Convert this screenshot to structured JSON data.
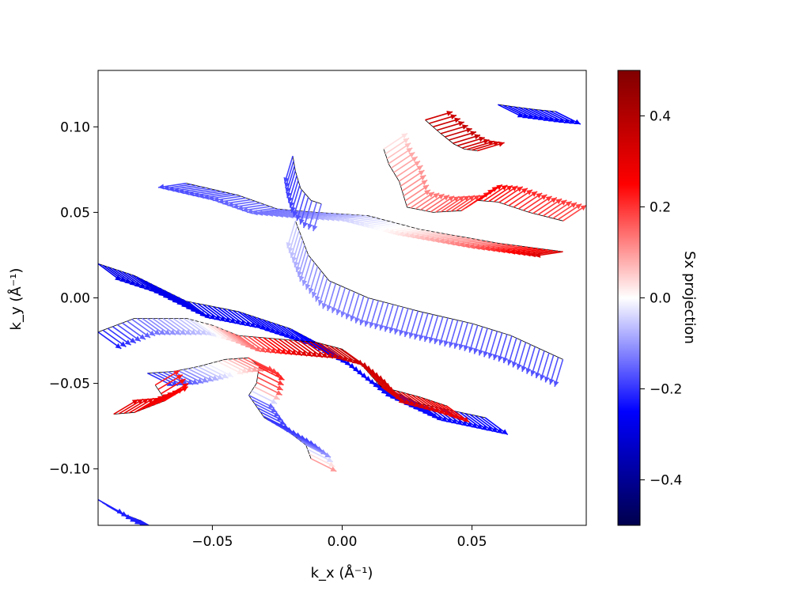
{
  "chart_data": {
    "type": "quiver",
    "xlabel": "k_x (Å⁻¹)",
    "ylabel": "k_y (Å⁻¹)",
    "xlim": [
      -0.094,
      0.094
    ],
    "ylim": [
      -0.133,
      0.133
    ],
    "x_ticks": [
      -0.05,
      0.0,
      0.05
    ],
    "x_tick_labels": [
      "−0.05",
      "0.00",
      "0.05"
    ],
    "y_ticks": [
      -0.1,
      -0.05,
      0.0,
      0.05,
      0.1
    ],
    "y_tick_labels": [
      "−0.10",
      "−0.05",
      "0.00",
      "0.05",
      "0.10"
    ],
    "colorbar": {
      "label": "Sx projection",
      "range": [
        -0.5,
        0.5
      ],
      "ticks": [
        -0.4,
        -0.2,
        0.0,
        0.2,
        0.4
      ],
      "tick_labels": [
        "−0.4",
        "−0.2",
        "0.0",
        "0.2",
        "0.4"
      ],
      "colormap": "seismic",
      "colors": [
        "#00004d",
        "#0000ff",
        "#ffffff",
        "#ff0000",
        "#800000"
      ]
    },
    "series": [
      {
        "points": [
          [
            -0.06,
            0.067
          ],
          [
            -0.04,
            0.06
          ],
          [
            -0.025,
            0.052
          ],
          [
            -0.01,
            0.05
          ],
          [
            0.01,
            0.048
          ],
          [
            0.03,
            0.04
          ],
          [
            0.06,
            0.032
          ],
          [
            0.085,
            0.027
          ]
        ],
        "sx": [
          -0.18,
          -0.16,
          -0.14,
          -0.12,
          -0.05,
          0.02,
          0.15,
          0.32
        ],
        "dir": [
          -1.0,
          -0.15
        ]
      },
      {
        "points": [
          [
            -0.019,
            0.083
          ],
          [
            -0.018,
            0.074
          ],
          [
            -0.016,
            0.064
          ],
          [
            -0.012,
            0.057
          ],
          [
            -0.008,
            0.055
          ]
        ],
        "sx": [
          -0.18,
          -0.19,
          -0.18,
          -0.16,
          -0.14
        ],
        "dir": [
          -0.3,
          -1.0
        ]
      },
      {
        "points": [
          [
            -0.018,
            0.045
          ],
          [
            -0.013,
            0.025
          ],
          [
            -0.005,
            0.01
          ],
          [
            0.01,
            0.0
          ],
          [
            0.03,
            -0.008
          ],
          [
            0.05,
            -0.015
          ],
          [
            0.065,
            -0.022
          ],
          [
            0.085,
            -0.036
          ]
        ],
        "sx": [
          -0.05,
          -0.1,
          -0.12,
          -0.14,
          -0.15,
          -0.16,
          -0.17,
          -0.17
        ],
        "dir": [
          -0.3,
          -1.0
        ]
      },
      {
        "points": [
          [
            0.016,
            0.087
          ],
          [
            0.018,
            0.078
          ],
          [
            0.022,
            0.068
          ],
          [
            0.025,
            0.053
          ],
          [
            0.035,
            0.05
          ],
          [
            0.046,
            0.051
          ],
          [
            0.052,
            0.057
          ],
          [
            0.06,
            0.056
          ],
          [
            0.072,
            0.05
          ],
          [
            0.085,
            0.045
          ]
        ],
        "sx": [
          0.03,
          0.08,
          0.1,
          0.12,
          0.16,
          0.2,
          0.25,
          0.22,
          0.2,
          0.18
        ],
        "dir": [
          0.6,
          0.4
        ]
      },
      {
        "points": [
          [
            0.032,
            0.104
          ],
          [
            0.038,
            0.096
          ],
          [
            0.043,
            0.09
          ],
          [
            0.047,
            0.087
          ],
          [
            0.052,
            0.086
          ]
        ],
        "sx": [
          0.34,
          0.36,
          0.36,
          0.34,
          0.32
        ],
        "dir": [
          1.0,
          0.3
        ]
      },
      {
        "points": [
          [
            0.06,
            0.113
          ],
          [
            0.065,
            0.112
          ],
          [
            0.07,
            0.111
          ],
          [
            0.075,
            0.11
          ],
          [
            0.082,
            0.109
          ]
        ],
        "sx": [
          -0.25,
          -0.25,
          -0.25,
          -0.25,
          -0.25
        ],
        "dir": [
          1.0,
          -0.5
        ]
      },
      {
        "points": [
          [
            -0.094,
            0.02
          ],
          [
            -0.08,
            0.013
          ],
          [
            -0.06,
            -0.002
          ],
          [
            -0.04,
            -0.008
          ],
          [
            -0.02,
            -0.018
          ],
          [
            -0.005,
            -0.03
          ],
          [
            0.01,
            -0.048
          ],
          [
            0.03,
            -0.062
          ],
          [
            0.055,
            -0.07
          ]
        ],
        "sx": [
          -0.28,
          -0.28,
          -0.27,
          -0.26,
          -0.25,
          -0.25,
          -0.24,
          -0.24,
          -0.24
        ],
        "dir": [
          0.8,
          -0.6
        ]
      },
      {
        "points": [
          [
            -0.094,
            -0.02
          ],
          [
            -0.08,
            -0.012
          ],
          [
            -0.06,
            -0.012
          ],
          [
            -0.05,
            -0.016
          ],
          [
            -0.04,
            -0.022
          ],
          [
            -0.025,
            -0.024
          ],
          [
            -0.01,
            -0.026
          ],
          [
            0.0,
            -0.03
          ],
          [
            0.008,
            -0.04
          ],
          [
            0.015,
            -0.052
          ],
          [
            0.03,
            -0.058
          ],
          [
            0.04,
            -0.063
          ]
        ],
        "sx": [
          -0.22,
          -0.14,
          -0.05,
          0.05,
          0.15,
          0.3,
          0.34,
          0.35,
          0.34,
          0.32,
          0.3,
          0.28
        ],
        "dir": [
          0.7,
          -0.5
        ]
      },
      {
        "points": [
          [
            -0.075,
            -0.044
          ],
          [
            -0.065,
            -0.043
          ],
          [
            -0.055,
            -0.04
          ],
          [
            -0.045,
            -0.036
          ],
          [
            -0.036,
            -0.035
          ],
          [
            -0.032,
            -0.04
          ],
          [
            -0.033,
            -0.05
          ],
          [
            -0.036,
            -0.057
          ],
          [
            -0.03,
            -0.07
          ],
          [
            -0.02,
            -0.079
          ],
          [
            -0.014,
            -0.086
          ],
          [
            -0.012,
            -0.094
          ]
        ],
        "sx": [
          -0.2,
          -0.15,
          -0.05,
          0.05,
          0.18,
          0.22,
          0.15,
          -0.15,
          -0.2,
          -0.18,
          -0.1,
          0.1
        ],
        "dir": [
          0.8,
          -0.4
        ]
      },
      {
        "points": [
          [
            -0.072,
            -0.051
          ],
          [
            -0.068,
            -0.06
          ],
          [
            -0.08,
            -0.067
          ],
          [
            -0.088,
            -0.068
          ]
        ],
        "sx": [
          0.22,
          0.25,
          0.28,
          0.3
        ],
        "dir": [
          1.0,
          0.6
        ]
      },
      {
        "points": [
          [
            -0.094,
            -0.118
          ],
          [
            -0.09,
            -0.122
          ],
          [
            -0.085,
            -0.126
          ],
          [
            -0.078,
            -0.13
          ]
        ],
        "sx": [
          -0.22,
          -0.22,
          -0.22,
          -0.22
        ],
        "dir": [
          0.8,
          -0.45
        ]
      }
    ]
  }
}
